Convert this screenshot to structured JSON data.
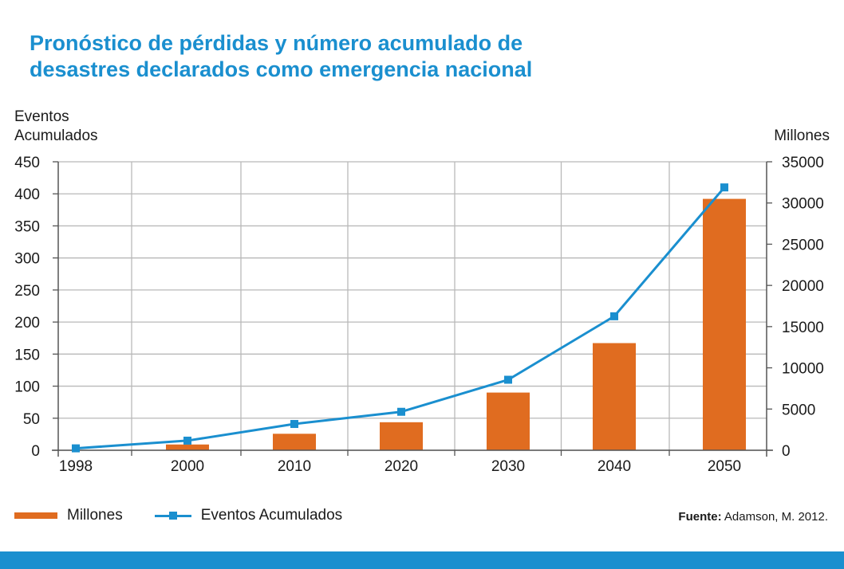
{
  "title_line1": "Pronóstico de pérdidas y número acumulado de",
  "title_line2": "desastres declarados como emergencia nacional",
  "left_axis_title_line1": "Eventos",
  "left_axis_title_line2": "Acumulados",
  "right_axis_title": "Millones",
  "legend": {
    "bar_label": "Millones",
    "line_label": "Eventos Acumulados"
  },
  "source": {
    "label": "Fuente:",
    "text": "Adamson, M. 2012."
  },
  "colors": {
    "bar": "#e06c20",
    "line": "#1a8fcf",
    "grid": "#b9b9b9",
    "title": "#1a8fcf"
  },
  "chart_data": {
    "type": "bar",
    "categories": [
      "1998",
      "2000",
      "2010",
      "2020",
      "2030",
      "2040",
      "2050"
    ],
    "series": [
      {
        "name": "Millones",
        "type": "bar",
        "axis": "right",
        "values": [
          0,
          700,
          2000,
          3400,
          7000,
          13000,
          30500
        ]
      },
      {
        "name": "Eventos Acumulados",
        "type": "line",
        "axis": "left",
        "values": [
          3,
          15,
          41,
          60,
          110,
          209,
          410
        ]
      }
    ],
    "ylim_left": [
      0,
      450
    ],
    "yticks_left": [
      0,
      50,
      100,
      150,
      200,
      250,
      300,
      350,
      400,
      450
    ],
    "ylim_right": [
      0,
      35000
    ],
    "yticks_right": [
      0,
      5000,
      10000,
      15000,
      20000,
      25000,
      30000,
      35000
    ],
    "grid": true,
    "legend_position": "bottom-left"
  }
}
